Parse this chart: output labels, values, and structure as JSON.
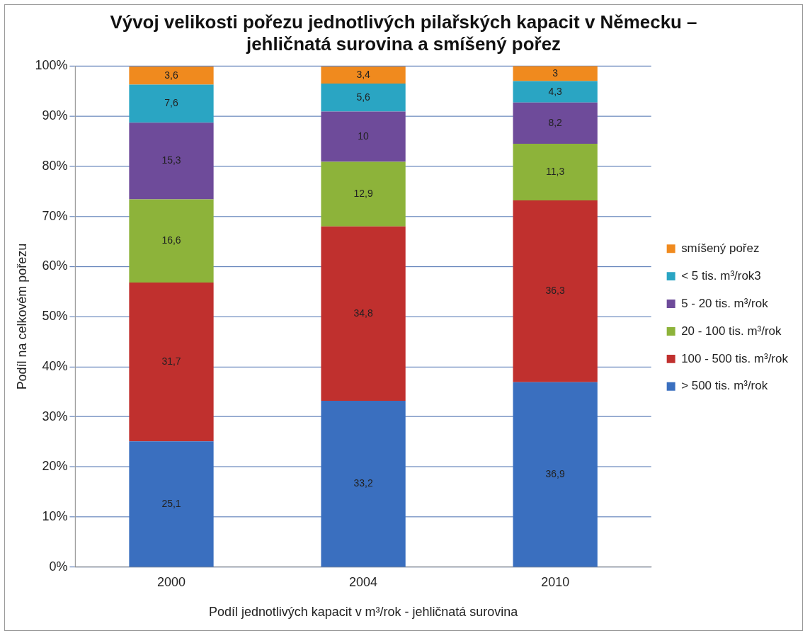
{
  "chart_data": {
    "type": "bar",
    "stacked": true,
    "title": "Vývoj velikosti pořezu jednotlivých pilařských kapacit v Německu – jehličnatá surovina a smíšený pořez",
    "xlabel": "Podíl jednotlivých kapacit v m³/rok - jehličnatá surovina",
    "ylabel": "Podíl na celkovém pořezu",
    "categories": [
      "2000",
      "2004",
      "2010"
    ],
    "series": [
      {
        "name": "> 500 tis. m³/rok",
        "color": "#3a6fbf",
        "values": [
          25.1,
          33.2,
          36.9
        ],
        "value_labels": [
          "25,1",
          "33,2",
          "36,9"
        ]
      },
      {
        "name": "100 - 500 tis. m³/rok",
        "color": "#c0302e",
        "values": [
          31.7,
          34.8,
          36.3
        ],
        "value_labels": [
          "31,7",
          "34,8",
          "36,3"
        ]
      },
      {
        "name": "20 - 100 tis. m³/rok",
        "color": "#8db33a",
        "values": [
          16.6,
          12.9,
          11.3
        ],
        "value_labels": [
          "16,6",
          "12,9",
          "11,3"
        ]
      },
      {
        "name": "5 - 20 tis. m³/rok",
        "color": "#6e4b9a",
        "values": [
          15.3,
          10,
          8.2
        ],
        "value_labels": [
          "15,3",
          "10",
          "8,2"
        ]
      },
      {
        "name": "< 5 tis. m³/rok3",
        "color": "#2aa5c3",
        "values": [
          7.6,
          5.6,
          4.3
        ],
        "value_labels": [
          "7,6",
          "5,6",
          "4,3"
        ]
      },
      {
        "name": "smíšený pořez",
        "color": "#f08a1e",
        "values": [
          3.6,
          3.4,
          3
        ],
        "value_labels": [
          "3,6",
          "3,4",
          "3"
        ]
      }
    ],
    "ylim": [
      0,
      100
    ],
    "yticks": [
      {
        "value": 0,
        "label": "0%"
      },
      {
        "value": 10,
        "label": "10%"
      },
      {
        "value": 20,
        "label": "20%"
      },
      {
        "value": 30,
        "label": "30%"
      },
      {
        "value": 40,
        "label": "40%"
      },
      {
        "value": 50,
        "label": "50%"
      },
      {
        "value": 60,
        "label": "60%"
      },
      {
        "value": 70,
        "label": "70%"
      },
      {
        "value": 80,
        "label": "80%"
      },
      {
        "value": 90,
        "label": "90%"
      },
      {
        "value": 100,
        "label": "100%"
      }
    ],
    "grid": "y",
    "legend": "right"
  }
}
